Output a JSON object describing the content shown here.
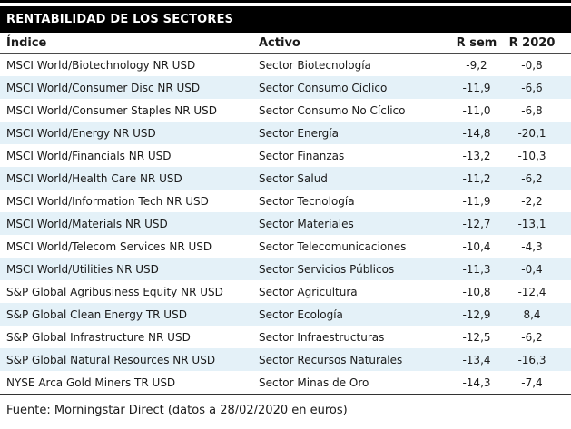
{
  "title": "RENTABILIDAD DE LOS SECTORES",
  "table": {
    "columns": [
      "Índice",
      "Activo",
      "R sem",
      "R 2020"
    ],
    "rows": [
      [
        "MSCI World/Biotechnology NR USD",
        "Sector Biotecnología",
        "-9,2",
        "-0,8"
      ],
      [
        "MSCI World/Consumer Disc NR USD",
        "Sector Consumo Cíclico",
        "-11,9",
        "-6,6"
      ],
      [
        "MSCI World/Consumer Staples NR USD",
        "Sector Consumo No Cíclico",
        "-11,0",
        "-6,8"
      ],
      [
        "MSCI World/Energy NR USD",
        "Sector Energía",
        "-14,8",
        "-20,1"
      ],
      [
        "MSCI World/Financials NR USD",
        "Sector Finanzas",
        "-13,2",
        "-10,3"
      ],
      [
        "MSCI World/Health Care NR USD",
        "Sector Salud",
        "-11,2",
        "-6,2"
      ],
      [
        "MSCI World/Information Tech NR USD",
        "Sector Tecnología",
        "-11,9",
        "-2,2"
      ],
      [
        "MSCI World/Materials NR USD",
        "Sector Materiales",
        "-12,7",
        "-13,1"
      ],
      [
        "MSCI World/Telecom Services NR USD",
        "Sector Telecomunicaciones",
        "-10,4",
        "-4,3"
      ],
      [
        "MSCI World/Utilities NR USD",
        "Sector Servicios Públicos",
        "-11,3",
        "-0,4"
      ],
      [
        "S&P Global Agribusiness Equity NR USD",
        "Sector Agricultura",
        "-10,8",
        "-12,4"
      ],
      [
        "S&P Global Clean Energy TR USD",
        "Sector Ecología",
        "-12,9",
        "8,4"
      ],
      [
        "S&P Global Infrastructure NR USD",
        "Sector Infraestructuras",
        "-12,5",
        "-6,2"
      ],
      [
        "S&P Global Natural Resources NR USD",
        "Sector Recursos Naturales",
        "-13,4",
        "-16,3"
      ],
      [
        "NYSE Arca Gold Miners TR USD",
        "Sector Minas de Oro",
        "-14,3",
        "-7,4"
      ]
    ]
  },
  "footer": "Fuente: Morningstar Direct (datos a 28/02/2020 en euros)",
  "colors": {
    "title_bg": "#000000",
    "title_fg": "#ffffff",
    "row_alt_bg": "#e4f1f8",
    "text": "#1a1a1a",
    "rule": "#333333"
  }
}
